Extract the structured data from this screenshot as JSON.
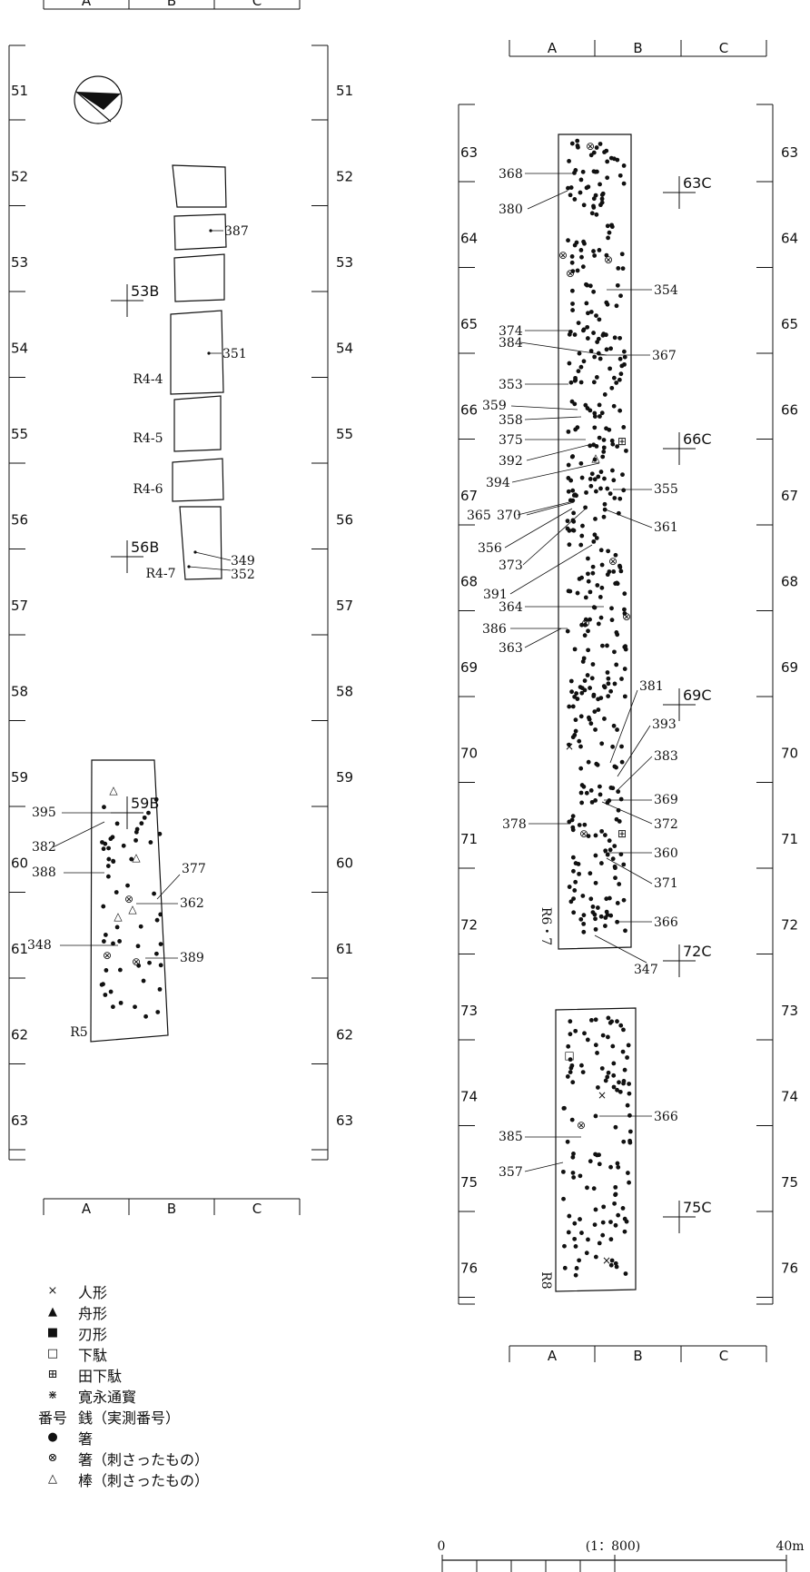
{
  "grid": {
    "columns": [
      "A",
      "B",
      "C"
    ],
    "left_panel_rows": [
      "51",
      "52",
      "53",
      "54",
      "55",
      "56",
      "57",
      "58",
      "59",
      "60",
      "61",
      "62",
      "63"
    ],
    "right_panel_rows": [
      "63",
      "64",
      "65",
      "66",
      "67",
      "68",
      "69",
      "70",
      "71",
      "72",
      "73",
      "74",
      "75",
      "76"
    ]
  },
  "section_markers": [
    "53B",
    "56B",
    "59B",
    "63C",
    "66C",
    "69C",
    "72C",
    "75C"
  ],
  "trench_labels": [
    "R4-4",
    "R4-5",
    "R4-6",
    "R4-7",
    "R5",
    "R6・7",
    "R8"
  ],
  "find_numbers": {
    "left": [
      "387",
      "351",
      "349",
      "352",
      "395",
      "382",
      "388",
      "377",
      "362",
      "348",
      "389"
    ],
    "right": [
      "368",
      "380",
      "354",
      "374",
      "384",
      "367",
      "353",
      "359",
      "358",
      "375",
      "392",
      "394",
      "355",
      "365",
      "370",
      "361",
      "356",
      "373",
      "391",
      "364",
      "386",
      "363",
      "381",
      "393",
      "383",
      "369",
      "372",
      "378",
      "360",
      "371",
      "366",
      "347",
      "366",
      "385",
      "357"
    ]
  },
  "legend": [
    {
      "symbol": "×",
      "label": "人形",
      "icon": "cross-icon"
    },
    {
      "symbol": "▲",
      "label": "舟形",
      "icon": "filled-triangle-icon"
    },
    {
      "symbol": "■",
      "label": "刃形",
      "icon": "filled-square-icon"
    },
    {
      "symbol": "□",
      "label": "下駄",
      "icon": "open-square-icon"
    },
    {
      "symbol": "⊞",
      "label": "田下駄",
      "icon": "squared-plus-icon"
    },
    {
      "symbol": "⋇",
      "label": "寛永通寳",
      "icon": "asterisk-icon"
    },
    {
      "symbol": "番号",
      "label": "銭（実測番号）",
      "icon": ""
    },
    {
      "symbol": "●",
      "label": "箸",
      "icon": "filled-dot-icon"
    },
    {
      "symbol": "⊗",
      "label": "箸（刺さったもの）",
      "icon": "circled-cross-icon"
    },
    {
      "symbol": "△",
      "label": "棒（刺さったもの）",
      "icon": "open-triangle-icon"
    }
  ],
  "scale": {
    "start": "0",
    "ratio": "(1：800)",
    "end": "40m"
  }
}
